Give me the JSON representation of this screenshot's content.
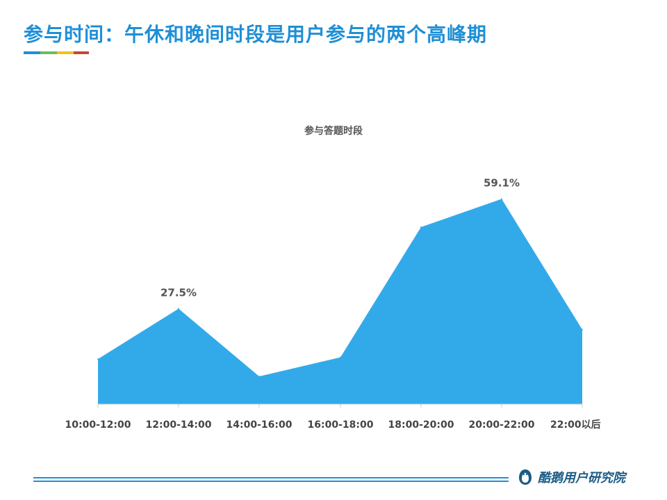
{
  "page": {
    "title": "参与时间：午休和晚间时段是用户参与的两个高峰期"
  },
  "colors": {
    "accent": "#1f8fd6",
    "area_fill": "#32aaea",
    "title_bar": [
      "#1f8fd6",
      "#6bbf59",
      "#f2c318",
      "#c8453a"
    ]
  },
  "footer": {
    "brand_name": "酷鹅用户研究院",
    "logo_icon": "penguin-logo-icon"
  },
  "chart_data": {
    "type": "area",
    "title": "参与答题时段",
    "categories": [
      "10:00-12:00",
      "12:00-14:00",
      "14:00-16:00",
      "16:00-18:00",
      "18:00-20:00",
      "20:00-22:00",
      "22:00以后"
    ],
    "values": [
      13,
      27.5,
      8,
      13.5,
      51,
      59.1,
      21.5
    ],
    "data_labels": [
      {
        "index": 1,
        "text": "27.5%"
      },
      {
        "index": 5,
        "text": "59.1%"
      }
    ],
    "ylim": [
      0,
      65
    ],
    "xlabel": "",
    "ylabel": "",
    "grid": false,
    "legend": "none"
  }
}
